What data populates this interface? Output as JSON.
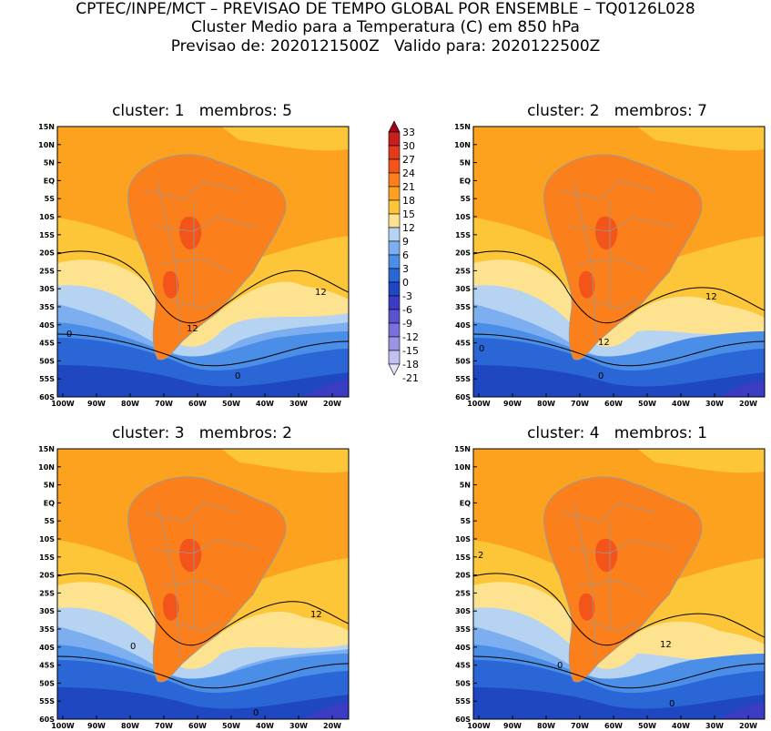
{
  "header": {
    "line1": "CPTEC/INPE/MCT – PREVISAO DE TEMPO GLOBAL POR ENSEMBLE – TQ0126L028",
    "line2": "Cluster Medio para a Temperatura (C) em 850 hPa",
    "line3": "Previsao de: 2020121500Z   Valido para: 2020122500Z"
  },
  "panels": [
    {
      "title": "cluster: 1   membros: 5",
      "contour_labels": [
        "12",
        "12",
        "0",
        "0"
      ]
    },
    {
      "title": "cluster: 2   membros: 7",
      "contour_labels": [
        "12",
        "12",
        "0",
        "0"
      ]
    },
    {
      "title": "cluster: 3   membros: 2",
      "contour_labels": [
        "12",
        "0",
        "0"
      ]
    },
    {
      "title": "cluster: 4   membros: 1",
      "contour_labels": [
        "2",
        "12",
        "0",
        "0"
      ]
    }
  ],
  "lat_ticks": [
    "15N",
    "10N",
    "5N",
    "EQ",
    "5S",
    "10S",
    "15S",
    "20S",
    "25S",
    "30S",
    "35S",
    "40S",
    "45S",
    "50S",
    "55S",
    "60S"
  ],
  "lon_ticks": [
    "100W",
    "90W",
    "80W",
    "70W",
    "60W",
    "50W",
    "40W",
    "30W",
    "20W"
  ],
  "colorbar": {
    "labels": [
      "33",
      "30",
      "27",
      "24",
      "21",
      "18",
      "15",
      "12",
      "9",
      "6",
      "3",
      "0",
      "-3",
      "-6",
      "-9",
      "-12",
      "-15",
      "-18",
      "-21"
    ],
    "colors": [
      "#a3001c",
      "#c71e1e",
      "#e33a1e",
      "#f25419",
      "#fb7f1a",
      "#fca21e",
      "#fcc638",
      "#fde38f",
      "#b6d3f2",
      "#7daff0",
      "#4b8ee7",
      "#2a66d6",
      "#1f47c2",
      "#3a3cc3",
      "#5b52cf",
      "#7a6fdb",
      "#9c93e5",
      "#c3bff0",
      "#e5e3f8"
    ]
  }
}
